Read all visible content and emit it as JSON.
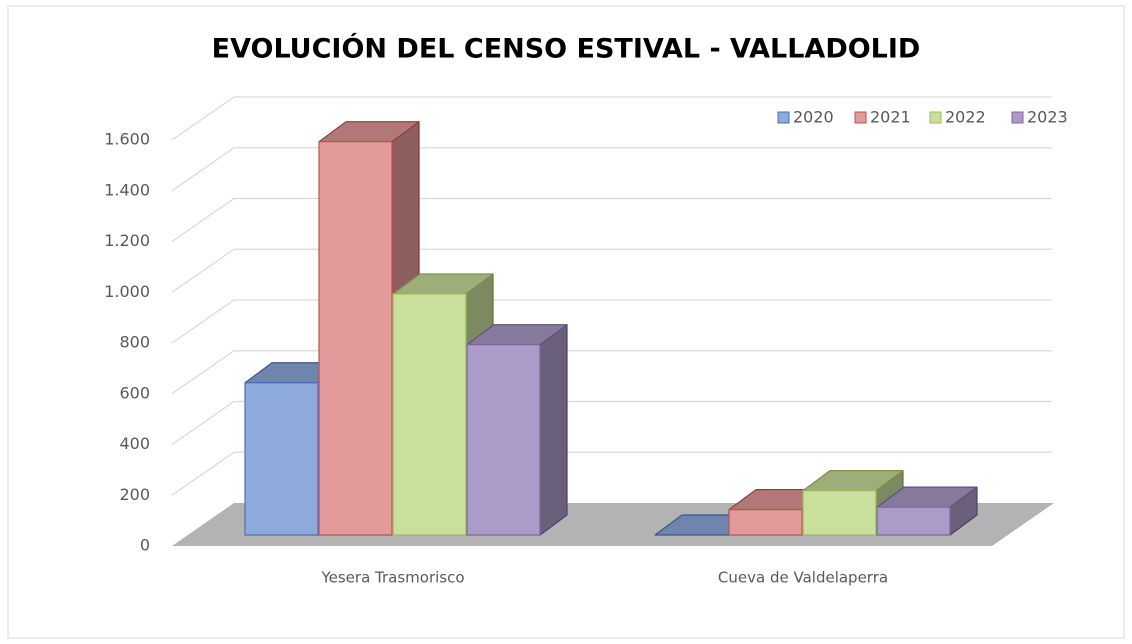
{
  "chart_data": {
    "type": "bar3d",
    "title": "EVOLUCIÓN DEL CENSO ESTIVAL - VALLADOLID",
    "categories": [
      "Yesera Trasmorisco",
      "Cueva de Valdelaperra"
    ],
    "series": [
      {
        "name": "2020",
        "color": "#8eaadb",
        "stroke": "#4472c4",
        "values": [
          600,
          0
        ]
      },
      {
        "name": "2021",
        "color": "#e39a9a",
        "stroke": "#c0504d",
        "values": [
          1550,
          100
        ]
      },
      {
        "name": "2022",
        "color": "#c9df9c",
        "stroke": "#9bbb59",
        "values": [
          950,
          175
        ]
      },
      {
        "name": "2023",
        "color": "#ab9bc8",
        "stroke": "#8064a2",
        "values": [
          750,
          110
        ]
      }
    ],
    "ylim": [
      0,
      1600
    ],
    "yticks": [
      0,
      200,
      400,
      600,
      800,
      {
        "value": 1000,
        "label": "1.000"
      },
      {
        "value": 1200,
        "label": "1.200"
      },
      {
        "value": 1400,
        "label": "1.400"
      },
      {
        "value": 1600,
        "label": "1.600"
      }
    ],
    "grid": true,
    "legend": "top-right"
  }
}
